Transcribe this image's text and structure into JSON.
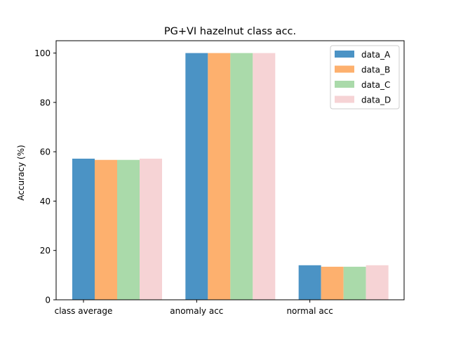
{
  "chart_data": {
    "type": "bar",
    "title": "PG+VI hazelnut class acc.",
    "xlabel": "",
    "ylabel": "Accuracy (%)",
    "ylim": [
      0,
      105
    ],
    "yticks": [
      0,
      20,
      40,
      60,
      80,
      100
    ],
    "categories": [
      "class average",
      "anomaly acc",
      "normal acc"
    ],
    "series": [
      {
        "name": "data_A",
        "color": "#4b93c5",
        "values": [
          57.2,
          100,
          14.0
        ]
      },
      {
        "name": "data_B",
        "color": "#fdb06e",
        "values": [
          56.7,
          100,
          13.4
        ]
      },
      {
        "name": "data_C",
        "color": "#aadaaa",
        "values": [
          56.7,
          100,
          13.4
        ]
      },
      {
        "name": "data_D",
        "color": "#f6d3d5",
        "values": [
          57.2,
          100,
          14.0
        ]
      }
    ],
    "grid": false,
    "legend": "top-right"
  }
}
